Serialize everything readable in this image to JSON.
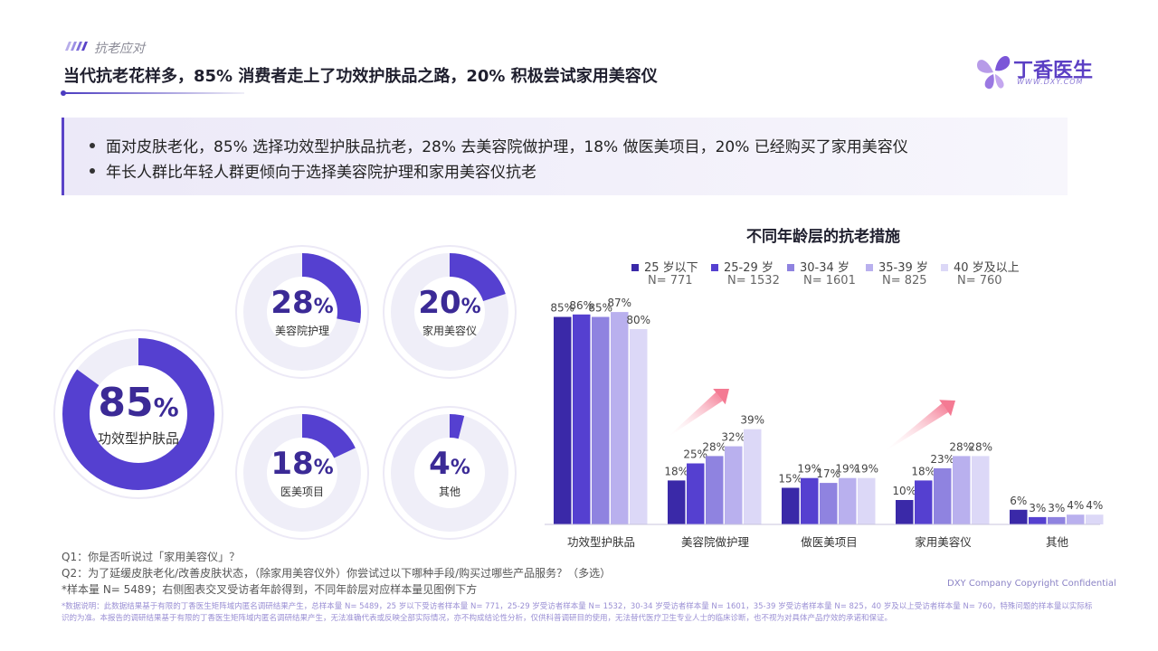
{
  "header": {
    "section_label": "抗老应对",
    "title": "当代抗老花样多，85% 消费者走上了功效护肤品之路，20% 积极尝试家用美容仪"
  },
  "logo": {
    "name": "丁香医生",
    "url_text": "WWW.DXY.COM"
  },
  "summary": {
    "bullets": [
      "面对皮肤老化，85% 选择功效型护肤品抗老，28% 去美容院做护理，18% 做医美项目，20% 已经购买了家用美容仪",
      "年长人群比年轻人群更倾向于选择美容院护理和家用美容仪抗老"
    ]
  },
  "rings": [
    {
      "value": 85,
      "value_text": "85",
      "unit": "%",
      "label": "功效型护肤品"
    },
    {
      "value": 28,
      "value_text": "28",
      "unit": "%",
      "label": "美容院护理"
    },
    {
      "value": 20,
      "value_text": "20",
      "unit": "%",
      "label": "家用美容仪"
    },
    {
      "value": 18,
      "value_text": "18",
      "unit": "%",
      "label": "医美项目"
    },
    {
      "value": 4,
      "value_text": "4",
      "unit": "%",
      "label": "其他"
    }
  ],
  "chart_data": {
    "type": "bar",
    "title": "不同年龄层的抗老措施",
    "categories": [
      "功效型护肤品",
      "美容院做护理",
      "做医美项目",
      "家用美容仪",
      "其他"
    ],
    "series": [
      {
        "name": "25 岁以下",
        "n_label": "N= 771",
        "color": "#3a29a8",
        "values": [
          85,
          18,
          15,
          10,
          6
        ]
      },
      {
        "name": "25-29 岁",
        "n_label": "N= 1532",
        "color": "#5540d0",
        "values": [
          86,
          25,
          19,
          18,
          3
        ]
      },
      {
        "name": "30-34 岁",
        "n_label": "N= 1601",
        "color": "#8f83e0",
        "values": [
          85,
          28,
          17,
          23,
          3
        ]
      },
      {
        "name": "35-39 岁",
        "n_label": "N= 825",
        "color": "#b9b0ee",
        "values": [
          87,
          32,
          19,
          28,
          4
        ]
      },
      {
        "name": "40 岁及以上",
        "n_label": "N= 760",
        "color": "#dcd8f7",
        "values": [
          80,
          39,
          19,
          28,
          4
        ]
      }
    ],
    "value_suffix": "%",
    "legend": "top",
    "grid": false,
    "ylim": [
      0,
      100
    ]
  },
  "footnotes": {
    "q1": "Q1：你是否听说过「家用美容仪」？",
    "q2": "Q2：为了延缓皮肤老化/改善皮肤状态，（除家用美容仪外）你尝试过以下哪种手段/购买过哪些产品服务？（多选）",
    "sample": "*样本量 N= 5489；右侧图表交叉受访者年龄得到，不同年龄层对应样本量见图例下方",
    "copyright": "DXY Company Copyright Confidential",
    "disclaimer": "*数据说明：此数据结果基于有限的丁香医生矩阵域内匿名调研结果产生，总样本量 N= 5489，25 岁以下受访者样本量 N= 771，25-29 岁受访者样本量 N= 1532，30-34 岁受访者样本量 N= 1601，35-39 岁受访者样本量 N= 825，40 岁及以上受访者样本量 N= 760，特殊问题的样本量以实际标识的为准。本报告的调研结果基于有限的丁香医生矩阵域内匿名调研结果产生，无法准确代表或反映全部实际情况，亦不构成结论性分析，仅供科普调研目的使用，无法替代医疗卫生专业人士的临床诊断，也不视为对具体产品疗效的承诺和保证。"
  },
  "colors": {
    "accent": "#5540d0",
    "ring_fill": "#5540d0",
    "ring_track": "#efeef8",
    "arrow": "#f47a93"
  }
}
